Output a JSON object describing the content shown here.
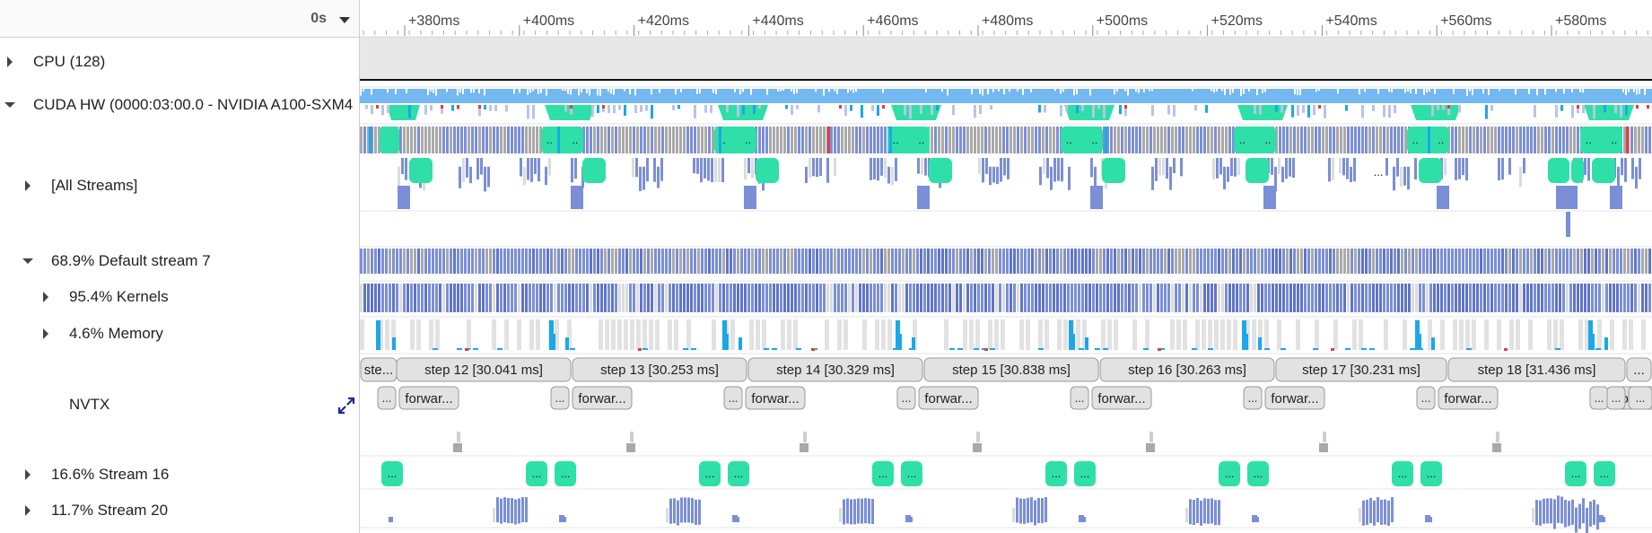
{
  "header": {
    "time_origin": "0s"
  },
  "ruler": {
    "ticks": [
      "+380ms",
      "+400ms",
      "+420ms",
      "+440ms",
      "+460ms",
      "+480ms",
      "+500ms",
      "+520ms",
      "+540ms",
      "+560ms",
      "+580ms"
    ]
  },
  "rows": {
    "cpu": "CPU (128)",
    "cuda_hw": "CUDA HW (0000:03:00.0 - NVIDIA A100-SXM4",
    "all_streams": "[All Streams]",
    "default_stream": "68.9% Default stream 7",
    "kernels": "95.4% Kernels",
    "memory": "4.6% Memory",
    "nvtx": "NVTX",
    "stream16": "16.6% Stream 16",
    "stream20": "11.7% Stream 20"
  },
  "nvtx": {
    "steps": [
      {
        "label": "ste..."
      },
      {
        "label": "step 12 [30.041 ms]"
      },
      {
        "label": "step 13 [30.253 ms]"
      },
      {
        "label": "step 14 [30.329 ms]"
      },
      {
        "label": "step 15 [30.838 ms]"
      },
      {
        "label": "step 16 [30.263 ms]"
      },
      {
        "label": "step 17 [30.231 ms]"
      },
      {
        "label": "step 18 [31.436 ms]"
      },
      {
        "label": "..."
      }
    ],
    "forward_label": "forwar...",
    "ellipsis": "..."
  },
  "colors": {
    "kernel": "#7b8fd6",
    "kernel_dark": "#5f74c8",
    "gray": "#a9a9a9",
    "light_gray": "#dcdcdc",
    "teal": "#2ee0a8",
    "blue": "#73b8f0",
    "cyan": "#1aa8e8",
    "red": "#e0403a",
    "nvtx_fill": "#e2e2e2"
  }
}
